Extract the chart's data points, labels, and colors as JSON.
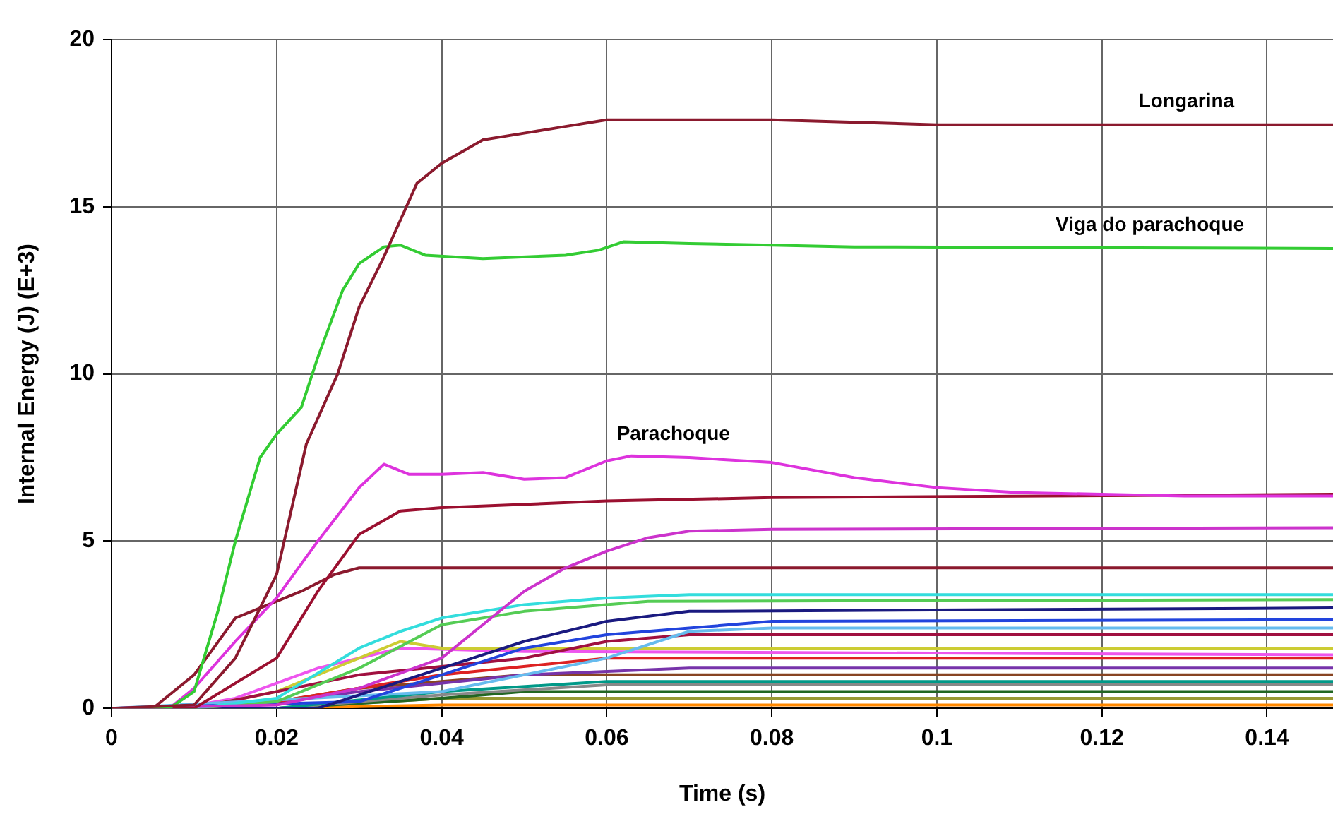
{
  "chart_data": {
    "type": "line",
    "xlabel": "Time (s)",
    "ylabel": "Internal Energy (J) (E+3)",
    "xlim": [
      0,
      0.148
    ],
    "xticks": [
      0,
      0.02,
      0.04,
      0.06,
      0.08,
      0.1,
      0.12,
      0.14
    ],
    "ylim": [
      0,
      20
    ],
    "yticks": [
      0,
      5,
      10,
      15,
      20
    ],
    "grid": true,
    "legend": false,
    "marker": "none",
    "line_style": "solid",
    "series": [
      {
        "name": "Longarina",
        "color": "#8b1a2e",
        "x": [
          0,
          0.01,
          0.015,
          0.02,
          0.0236,
          0.0274,
          0.03,
          0.033,
          0.035,
          0.037,
          0.04,
          0.045,
          0.05,
          0.055,
          0.06,
          0.08,
          0.1,
          0.148
        ],
        "values": [
          0,
          0.1,
          1.5,
          4,
          7.9,
          10,
          12,
          13.5,
          14.6,
          15.7,
          16.3,
          17,
          17.2,
          17.4,
          17.6,
          17.6,
          17.45,
          17.45
        ]
      },
      {
        "name": "Viga do parachoque",
        "color": "#33cc33",
        "x": [
          0,
          0.007,
          0.01,
          0.013,
          0.015,
          0.018,
          0.02,
          0.023,
          0.025,
          0.028,
          0.03,
          0.033,
          0.035,
          0.038,
          0.045,
          0.055,
          0.059,
          0.062,
          0.07,
          0.08,
          0.09,
          0.148
        ],
        "values": [
          0,
          0,
          0.5,
          3,
          5,
          7.5,
          8.2,
          9,
          10.5,
          12.5,
          13.3,
          13.8,
          13.85,
          13.55,
          13.45,
          13.55,
          13.7,
          13.95,
          13.9,
          13.85,
          13.8,
          13.75
        ]
      },
      {
        "name": "Parachoque",
        "color": "#dd33dd",
        "x": [
          0,
          0.007,
          0.01,
          0.015,
          0.02,
          0.025,
          0.03,
          0.033,
          0.036,
          0.04,
          0.045,
          0.05,
          0.055,
          0.06,
          0.063,
          0.07,
          0.08,
          0.09,
          0.1,
          0.11,
          0.13,
          0.148
        ],
        "values": [
          0,
          0,
          0.6,
          2,
          3.3,
          5,
          6.6,
          7.3,
          7,
          7,
          7.05,
          6.85,
          6.9,
          7.4,
          7.55,
          7.5,
          7.35,
          6.9,
          6.6,
          6.45,
          6.35,
          6.35
        ]
      },
      {
        "color": "#9b1030",
        "x": [
          0,
          0.01,
          0.02,
          0.025,
          0.03,
          0.035,
          0.04,
          0.06,
          0.08,
          0.148
        ],
        "values": [
          0,
          0,
          1.5,
          3.5,
          5.2,
          5.9,
          6,
          6.2,
          6.3,
          6.4
        ]
      },
      {
        "color": "#cc33cc",
        "x": [
          0,
          0.02,
          0.03,
          0.04,
          0.045,
          0.05,
          0.055,
          0.06,
          0.065,
          0.07,
          0.08,
          0.148
        ],
        "values": [
          0,
          0.1,
          0.6,
          1.5,
          2.5,
          3.5,
          4.2,
          4.7,
          5.1,
          5.3,
          5.35,
          5.4
        ]
      },
      {
        "color": "#8b1a2e",
        "x": [
          0,
          0.005,
          0.01,
          0.015,
          0.02,
          0.023,
          0.027,
          0.03,
          0.035,
          0.148
        ],
        "values": [
          0,
          0,
          1,
          2.7,
          3.2,
          3.5,
          4,
          4.2,
          4.2,
          4.2
        ]
      },
      {
        "color": "#33dddd",
        "x": [
          0,
          0.01,
          0.02,
          0.03,
          0.035,
          0.04,
          0.05,
          0.06,
          0.07,
          0.148
        ],
        "values": [
          0,
          0,
          0.3,
          1.8,
          2.3,
          2.7,
          3.1,
          3.3,
          3.4,
          3.4
        ]
      },
      {
        "color": "#55cc55",
        "x": [
          0,
          0.01,
          0.02,
          0.03,
          0.04,
          0.05,
          0.065,
          0.148
        ],
        "values": [
          0,
          0,
          0.2,
          1.2,
          2.5,
          2.9,
          3.2,
          3.25
        ]
      },
      {
        "color": "#1a1a80",
        "x": [
          0,
          0.025,
          0.04,
          0.05,
          0.06,
          0.07,
          0.148
        ],
        "values": [
          0,
          0,
          1.2,
          2,
          2.6,
          2.9,
          3
        ]
      },
      {
        "color": "#2244dd",
        "x": [
          0,
          0.03,
          0.04,
          0.05,
          0.06,
          0.07,
          0.08,
          0.148
        ],
        "values": [
          0,
          0.2,
          1,
          1.8,
          2.2,
          2.4,
          2.6,
          2.65
        ]
      },
      {
        "color": "#66bbee",
        "x": [
          0,
          0.04,
          0.06,
          0.07,
          0.08,
          0.148
        ],
        "values": [
          0,
          0.5,
          1.5,
          2.3,
          2.4,
          2.4
        ]
      },
      {
        "color": "#a01040",
        "x": [
          0,
          0.01,
          0.02,
          0.03,
          0.05,
          0.06,
          0.07,
          0.148
        ],
        "values": [
          0,
          0,
          0.5,
          1,
          1.5,
          2,
          2.2,
          2.2
        ]
      },
      {
        "color": "#cccc33",
        "x": [
          0,
          0.01,
          0.02,
          0.035,
          0.04,
          0.06,
          0.148
        ],
        "values": [
          0,
          0,
          0.5,
          2,
          1.8,
          1.8,
          1.8
        ]
      },
      {
        "color": "#ee55ee",
        "x": [
          0,
          0.008,
          0.015,
          0.025,
          0.035,
          0.05,
          0.148
        ],
        "values": [
          0,
          0,
          0.3,
          1.2,
          1.8,
          1.7,
          1.6
        ]
      },
      {
        "color": "#dd2222",
        "x": [
          0,
          0.01,
          0.02,
          0.04,
          0.06,
          0.148
        ],
        "values": [
          0,
          0,
          0.2,
          1,
          1.5,
          1.5
        ]
      },
      {
        "color": "#7733aa",
        "x": [
          0,
          0.015,
          0.03,
          0.05,
          0.07,
          0.148
        ],
        "values": [
          0,
          0,
          0.5,
          1,
          1.2,
          1.2
        ]
      },
      {
        "color": "#884422",
        "x": [
          0,
          0.015,
          0.03,
          0.05,
          0.148
        ],
        "values": [
          0,
          0,
          0.6,
          1,
          1
        ]
      },
      {
        "color": "#009988",
        "x": [
          0,
          0.02,
          0.04,
          0.06,
          0.148
        ],
        "values": [
          0,
          0,
          0.5,
          0.8,
          0.8
        ]
      },
      {
        "color": "#888888",
        "x": [
          0,
          0.02,
          0.04,
          0.06,
          0.148
        ],
        "values": [
          0,
          0,
          0.4,
          0.7,
          0.7
        ]
      },
      {
        "color": "#226622",
        "x": [
          0,
          0.02,
          0.04,
          0.05,
          0.148
        ],
        "values": [
          0,
          0,
          0.3,
          0.5,
          0.5
        ]
      },
      {
        "color": "#999933",
        "x": [
          0,
          0.02,
          0.04,
          0.148
        ],
        "values": [
          0,
          0,
          0.3,
          0.3
        ]
      },
      {
        "color": "#ff8800",
        "x": [
          0,
          0.02,
          0.04,
          0.148
        ],
        "values": [
          0,
          0,
          0.1,
          0.1
        ]
      }
    ]
  }
}
